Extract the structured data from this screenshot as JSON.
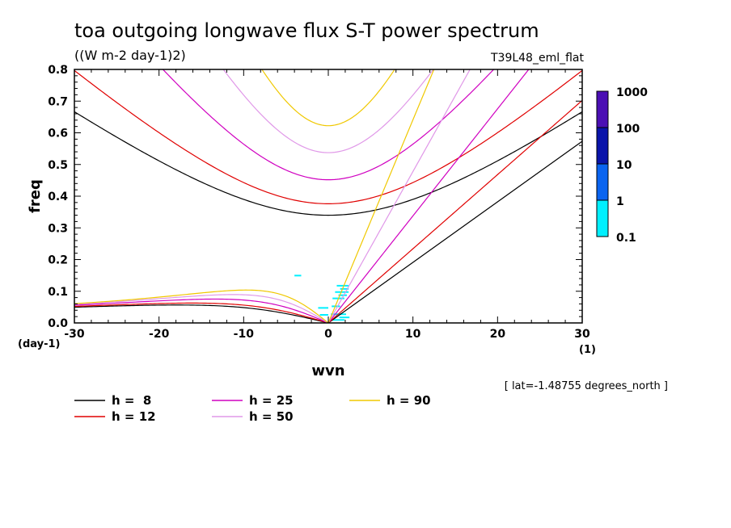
{
  "chart_data": {
    "type": "line",
    "title": "toa outgoing longwave flux S-T power spectrum",
    "units": "((W m-2 day-1)2)",
    "run_label": "T39L48_eml_flat",
    "xlabel": "wvn",
    "ylabel": "freq",
    "x_unit": "(1)",
    "y_unit": "(day-1)",
    "xlim": [
      -30,
      30
    ],
    "ylim": [
      0,
      0.8
    ],
    "x_ticks": [
      "-30",
      "-20",
      "-10",
      "0",
      "10",
      "20",
      "30"
    ],
    "y_ticks": [
      "0.0",
      "0.1",
      "0.2",
      "0.3",
      "0.4",
      "0.5",
      "0.6",
      "0.7",
      "0.8"
    ],
    "annotation": "[ lat=-1.48755 degrees_north ]",
    "colorbar": {
      "labels": [
        "1000",
        "100",
        "10",
        "1",
        "0.1"
      ],
      "colors": [
        "#4b0fb4",
        "#0a14aa",
        "#0a64f0",
        "#00f0ff"
      ]
    },
    "series": [
      {
        "name": "h =  8",
        "h": 8,
        "color": "#000000"
      },
      {
        "name": "h = 12",
        "h": 12,
        "color": "#e00000"
      },
      {
        "name": "h = 25",
        "h": 25,
        "color": "#d000c0"
      },
      {
        "name": "h = 50",
        "h": 50,
        "color": "#e098e8"
      },
      {
        "name": "h = 90",
        "h": 90,
        "color": "#f0c800"
      }
    ]
  }
}
